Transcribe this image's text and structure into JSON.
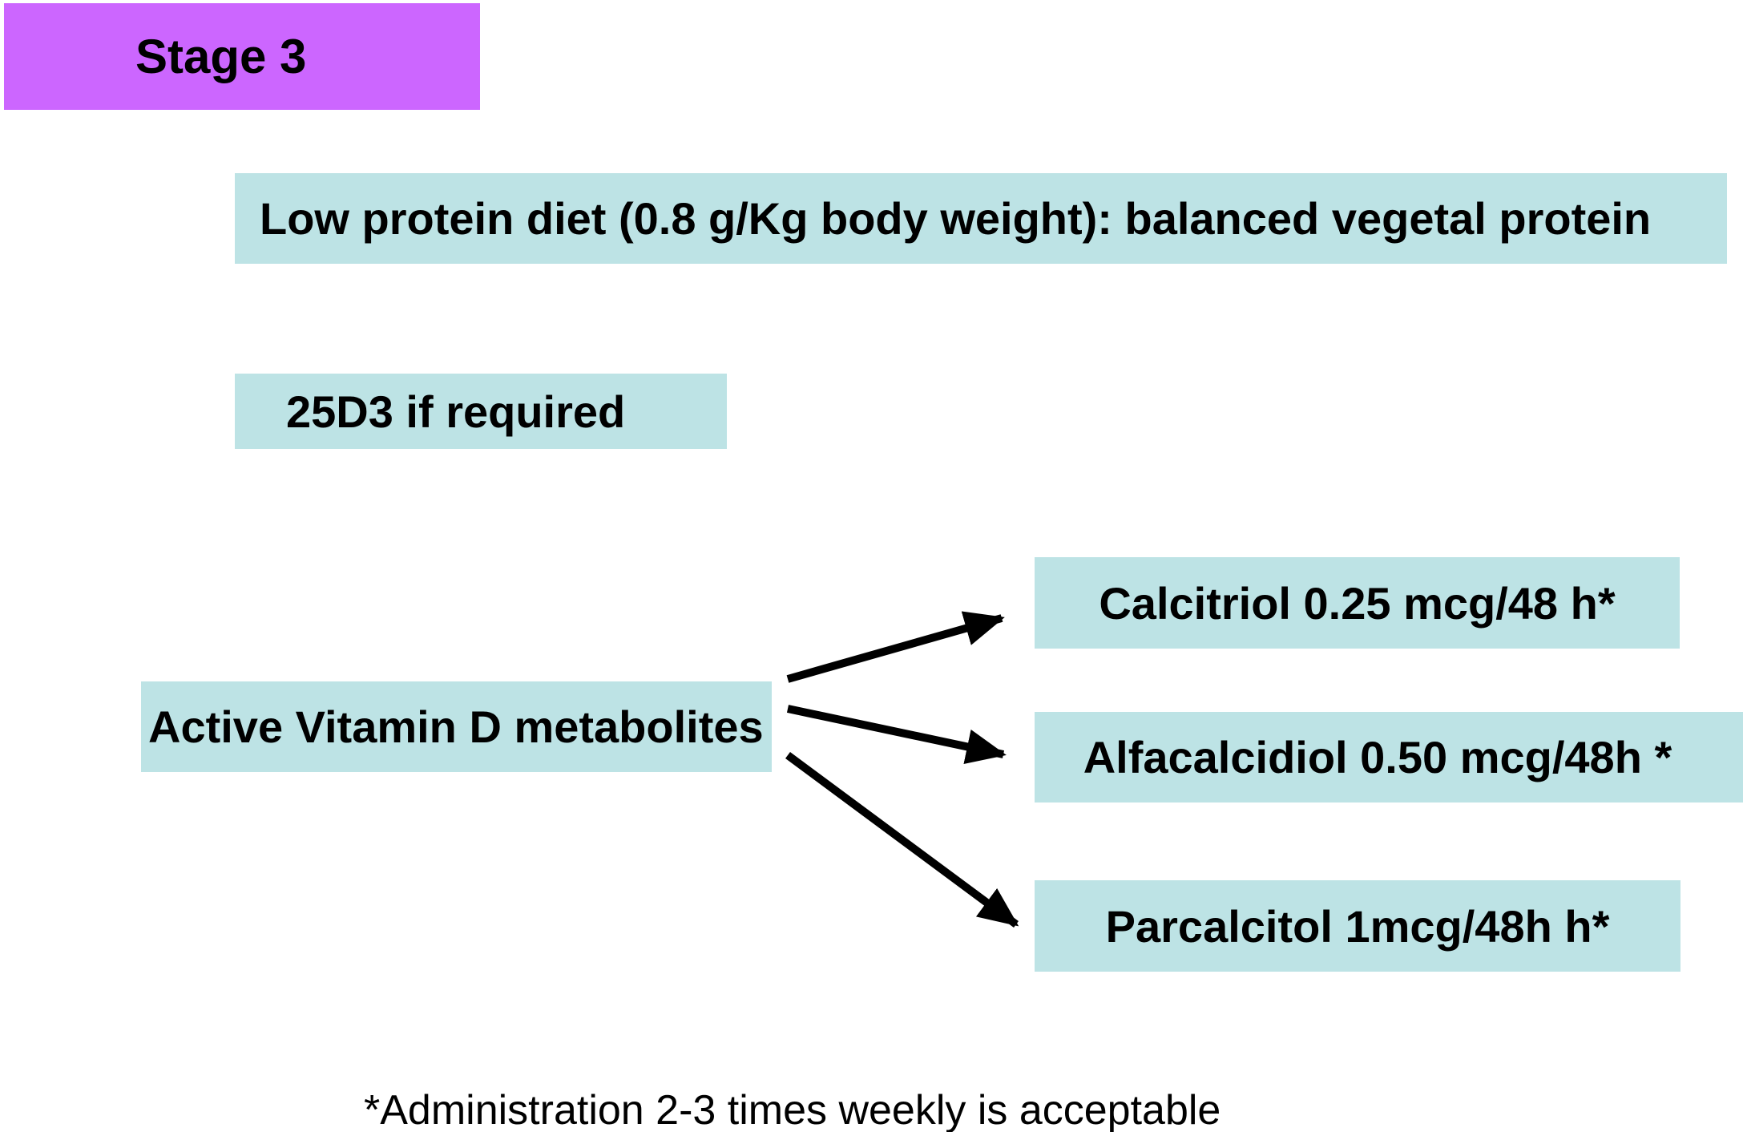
{
  "stage_label": "Stage 3",
  "diet_box": "Low protein diet (0.8 g/Kg body weight): balanced vegetal protein",
  "d3_box": "25D3 if required",
  "source_box": "Active Vitamin D metabolites",
  "drugs": [
    "Calcitriol 0.25 mcg/48 h*",
    "Alfacalcidiol 0.50 mcg/48h *",
    "Parcalcitol 1mcg/48h h*"
  ],
  "footnote": "*Administration 2-3 times weekly is acceptable",
  "colors": {
    "stage_fill": "#cc66ff",
    "box_fill": "#bde3e5",
    "arrow": "#000000"
  }
}
